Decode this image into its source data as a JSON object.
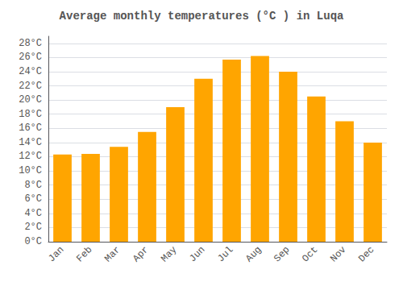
{
  "chart_data": {
    "type": "bar",
    "title": "Average monthly temperatures (°C ) in Luqa",
    "categories": [
      "Jan",
      "Feb",
      "Mar",
      "Apr",
      "May",
      "Jun",
      "Jul",
      "Aug",
      "Sep",
      "Oct",
      "Nov",
      "Dec"
    ],
    "values": [
      12.3,
      12.4,
      13.4,
      15.5,
      19.0,
      23.0,
      25.7,
      26.2,
      24.0,
      20.5,
      17.0,
      14.0
    ],
    "color": "#FFA500",
    "ylim": [
      0,
      29
    ],
    "yticks": [
      {
        "value": 0,
        "label": "0°C"
      },
      {
        "value": 2,
        "label": "2°C"
      },
      {
        "value": 4,
        "label": "4°C"
      },
      {
        "value": 6,
        "label": "6°C"
      },
      {
        "value": 8,
        "label": "8°C"
      },
      {
        "value": 10,
        "label": "10°C"
      },
      {
        "value": 12,
        "label": "12°C"
      },
      {
        "value": 14,
        "label": "14°C"
      },
      {
        "value": 16,
        "label": "16°C"
      },
      {
        "value": 18,
        "label": "18°C"
      },
      {
        "value": 20,
        "label": "20°C"
      },
      {
        "value": 22,
        "label": "22°C"
      },
      {
        "value": 24,
        "label": "24°C"
      },
      {
        "value": 26,
        "label": "26°C"
      },
      {
        "value": 28,
        "label": "28°C"
      }
    ],
    "grid": true
  }
}
